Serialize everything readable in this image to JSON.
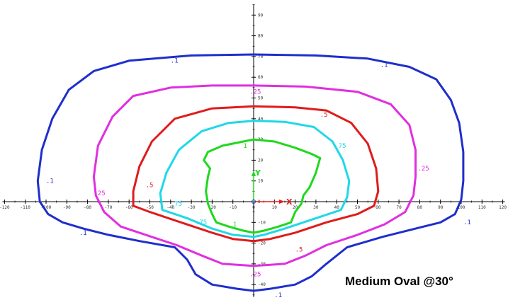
{
  "caption": "Medium Oval @30°",
  "axes": {
    "x_name": "X",
    "y_name": "Y"
  },
  "x_ticks": [
    -120,
    -110,
    -100,
    -90,
    -80,
    -70,
    -60,
    -50,
    -40,
    -30,
    -20,
    -10,
    0,
    10,
    20,
    30,
    40,
    50,
    60,
    70,
    80,
    90,
    100,
    110,
    120
  ],
  "y_ticks": [
    -40,
    -30,
    -20,
    -10,
    0,
    10,
    20,
    30,
    40,
    50,
    60,
    70,
    80,
    90
  ],
  "contours": [
    {
      "level": 0.1,
      "label": ".1",
      "color": "#1f2ecc",
      "points": [
        [
          0,
          71
        ],
        [
          30,
          70.5
        ],
        [
          55,
          69
        ],
        [
          75,
          65
        ],
        [
          88,
          59
        ],
        [
          95,
          49
        ],
        [
          99,
          38
        ],
        [
          101,
          24
        ],
        [
          101,
          10
        ],
        [
          100,
          1
        ],
        [
          97,
          -6
        ],
        [
          90,
          -10
        ],
        [
          78,
          -13
        ],
        [
          62,
          -17
        ],
        [
          45,
          -22
        ],
        [
          35,
          -30
        ],
        [
          28,
          -36
        ],
        [
          20,
          -40
        ],
        [
          8,
          -42
        ],
        [
          0,
          -43
        ],
        [
          -8,
          -42
        ],
        [
          -20,
          -40
        ],
        [
          -28,
          -35
        ],
        [
          -32,
          -28
        ],
        [
          -38,
          -22
        ],
        [
          -55,
          -19
        ],
        [
          -70,
          -16
        ],
        [
          -82,
          -13
        ],
        [
          -92,
          -10
        ],
        [
          -99,
          -6
        ],
        [
          -103,
          0
        ],
        [
          -104,
          10
        ],
        [
          -102,
          25
        ],
        [
          -97,
          40
        ],
        [
          -89,
          54
        ],
        [
          -77,
          63
        ],
        [
          -60,
          68
        ],
        [
          -30,
          70.5
        ],
        [
          0,
          71
        ]
      ],
      "labels": [
        [
          -40,
          67
        ],
        [
          61,
          65
        ],
        [
          -100,
          9
        ],
        [
          -84,
          -16
        ],
        [
          101,
          -11
        ],
        [
          10,
          -46
        ]
      ]
    },
    {
      "level": 0.25,
      "label": ".25",
      "color": "#e02fe0",
      "points": [
        [
          0,
          56
        ],
        [
          25,
          55.5
        ],
        [
          50,
          53
        ],
        [
          66,
          47
        ],
        [
          75,
          37
        ],
        [
          78,
          25
        ],
        [
          78,
          12
        ],
        [
          77,
          3
        ],
        [
          73,
          -5
        ],
        [
          63,
          -11
        ],
        [
          50,
          -16
        ],
        [
          35,
          -21
        ],
        [
          25,
          -26
        ],
        [
          15,
          -30
        ],
        [
          0,
          -31
        ],
        [
          -15,
          -30
        ],
        [
          -25,
          -26
        ],
        [
          -37,
          -21
        ],
        [
          -52,
          -16
        ],
        [
          -64,
          -12
        ],
        [
          -72,
          -5
        ],
        [
          -76,
          3
        ],
        [
          -77,
          12
        ],
        [
          -75,
          27
        ],
        [
          -68,
          41
        ],
        [
          -58,
          51
        ],
        [
          -40,
          55
        ],
        [
          -20,
          56
        ],
        [
          0,
          56
        ]
      ],
      "labels": [
        [
          -2,
          52
        ],
        [
          79,
          15
        ],
        [
          -77,
          3
        ],
        [
          -2,
          -36
        ]
      ]
    },
    {
      "level": 0.5,
      "label": ".5",
      "color": "#e01b1b",
      "points": [
        [
          0,
          46
        ],
        [
          20,
          45.5
        ],
        [
          35,
          44
        ],
        [
          47,
          38
        ],
        [
          55,
          28
        ],
        [
          59,
          16
        ],
        [
          60,
          5
        ],
        [
          58,
          -2
        ],
        [
          50,
          -6
        ],
        [
          35,
          -10
        ],
        [
          20,
          -15
        ],
        [
          8,
          -18
        ],
        [
          0,
          -19
        ],
        [
          -10,
          -18
        ],
        [
          -20,
          -15
        ],
        [
          -35,
          -10
        ],
        [
          -50,
          -5
        ],
        [
          -58,
          -2
        ],
        [
          -58,
          5
        ],
        [
          -55,
          17
        ],
        [
          -49,
          29
        ],
        [
          -38,
          40
        ],
        [
          -20,
          45
        ],
        [
          0,
          46
        ]
      ],
      "labels": [
        [
          32,
          41
        ],
        [
          -52,
          7
        ],
        [
          20,
          -24
        ]
      ]
    },
    {
      "level": 0.75,
      "label": ".75",
      "color": "#1fd8e8",
      "points": [
        [
          0,
          39
        ],
        [
          15,
          38.5
        ],
        [
          29,
          36
        ],
        [
          38,
          29
        ],
        [
          43,
          20
        ],
        [
          46,
          10
        ],
        [
          45,
          2
        ],
        [
          42,
          -4
        ],
        [
          30,
          -8
        ],
        [
          15,
          -13
        ],
        [
          5,
          -16
        ],
        [
          0,
          -17
        ],
        [
          -10,
          -16
        ],
        [
          -20,
          -13
        ],
        [
          -32,
          -8
        ],
        [
          -44,
          -4
        ],
        [
          -45,
          4
        ],
        [
          -42,
          14
        ],
        [
          -36,
          25
        ],
        [
          -25,
          34
        ],
        [
          -12,
          38
        ],
        [
          0,
          39
        ]
      ],
      "labels": [
        [
          39,
          26
        ],
        [
          -40,
          -2
        ],
        [
          -28,
          -11
        ]
      ]
    },
    {
      "level": 1,
      "label": "1",
      "color": "#1fd81f",
      "points": [
        [
          0,
          30
        ],
        [
          10,
          29
        ],
        [
          20,
          26
        ],
        [
          28,
          23
        ],
        [
          32,
          21
        ],
        [
          30,
          14
        ],
        [
          27,
          7
        ],
        [
          24,
          3
        ],
        [
          23,
          -1
        ],
        [
          20,
          -5
        ],
        [
          18,
          -10
        ],
        [
          12,
          -12
        ],
        [
          5,
          -14
        ],
        [
          0,
          -15
        ],
        [
          -5,
          -14
        ],
        [
          -12,
          -12
        ],
        [
          -18,
          -10
        ],
        [
          -20,
          -6
        ],
        [
          -22,
          -1
        ],
        [
          -23,
          5
        ],
        [
          -22,
          12
        ],
        [
          -21,
          16
        ],
        [
          -24,
          20
        ],
        [
          -22,
          24
        ],
        [
          -15,
          27
        ],
        [
          -5,
          29
        ],
        [
          0,
          30
        ]
      ],
      "labels": [
        [
          -5,
          26
        ],
        [
          -10,
          -12
        ]
      ]
    }
  ]
}
